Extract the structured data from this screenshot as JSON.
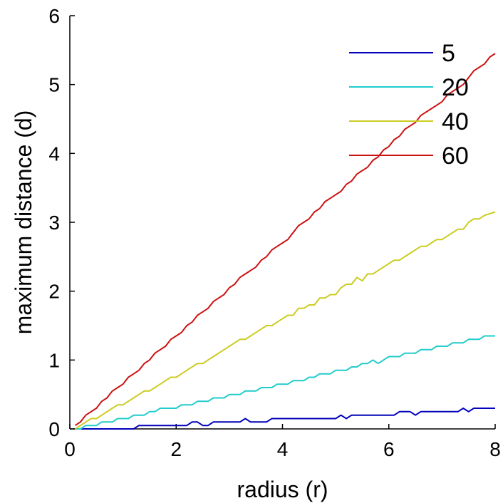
{
  "chart_data": {
    "type": "line",
    "title": "",
    "xlabel": "radius (r)",
    "ylabel": "maximum distance (d)",
    "xlim": [
      0,
      8
    ],
    "ylim": [
      0,
      6
    ],
    "xticks": [
      "0",
      "2",
      "4",
      "6",
      "8"
    ],
    "yticks": [
      "0",
      "1",
      "2",
      "3",
      "4",
      "5",
      "6"
    ],
    "grid": false,
    "legend_position": "top-right",
    "series": [
      {
        "name": "5",
        "color": "#0000bb",
        "points": [
          [
            0.1,
            0
          ],
          [
            1.2,
            0
          ],
          [
            1.3,
            0.05
          ],
          [
            2.2,
            0.05
          ],
          [
            2.3,
            0.1
          ],
          [
            2.4,
            0.1
          ],
          [
            2.5,
            0.05
          ],
          [
            2.6,
            0.05
          ],
          [
            2.7,
            0.1
          ],
          [
            3.2,
            0.1
          ],
          [
            3.3,
            0.15
          ],
          [
            3.4,
            0.1
          ],
          [
            3.7,
            0.1
          ],
          [
            3.8,
            0.15
          ],
          [
            5.0,
            0.15
          ],
          [
            5.1,
            0.2
          ],
          [
            5.2,
            0.15
          ],
          [
            5.3,
            0.2
          ],
          [
            6.1,
            0.2
          ],
          [
            6.2,
            0.25
          ],
          [
            6.4,
            0.25
          ],
          [
            6.5,
            0.2
          ],
          [
            6.6,
            0.25
          ],
          [
            7.3,
            0.25
          ],
          [
            7.4,
            0.3
          ],
          [
            7.5,
            0.25
          ],
          [
            7.6,
            0.3
          ],
          [
            8.0,
            0.3
          ]
        ]
      },
      {
        "name": "20",
        "color": "#22cccc",
        "points": [
          [
            0.1,
            0
          ],
          [
            0.2,
            0
          ],
          [
            0.3,
            0.05
          ],
          [
            0.5,
            0.05
          ],
          [
            0.6,
            0.1
          ],
          [
            0.8,
            0.1
          ],
          [
            0.9,
            0.15
          ],
          [
            1.1,
            0.15
          ],
          [
            1.2,
            0.2
          ],
          [
            1.4,
            0.2
          ],
          [
            1.5,
            0.25
          ],
          [
            1.6,
            0.25
          ],
          [
            1.7,
            0.3
          ],
          [
            1.9,
            0.3
          ],
          [
            2.0,
            0.3
          ],
          [
            2.1,
            0.35
          ],
          [
            2.3,
            0.35
          ],
          [
            2.4,
            0.4
          ],
          [
            2.6,
            0.4
          ],
          [
            2.7,
            0.45
          ],
          [
            2.9,
            0.45
          ],
          [
            3.0,
            0.5
          ],
          [
            3.2,
            0.5
          ],
          [
            3.3,
            0.55
          ],
          [
            3.5,
            0.55
          ],
          [
            3.6,
            0.6
          ],
          [
            3.8,
            0.6
          ],
          [
            3.9,
            0.65
          ],
          [
            4.1,
            0.65
          ],
          [
            4.2,
            0.7
          ],
          [
            4.4,
            0.7
          ],
          [
            4.5,
            0.75
          ],
          [
            4.6,
            0.75
          ],
          [
            4.7,
            0.8
          ],
          [
            4.9,
            0.8
          ],
          [
            5.0,
            0.85
          ],
          [
            5.2,
            0.85
          ],
          [
            5.3,
            0.9
          ],
          [
            5.4,
            0.9
          ],
          [
            5.5,
            0.95
          ],
          [
            5.6,
            0.95
          ],
          [
            5.7,
            1.0
          ],
          [
            5.8,
            0.95
          ],
          [
            5.9,
            1.0
          ],
          [
            6.0,
            1.05
          ],
          [
            6.2,
            1.05
          ],
          [
            6.3,
            1.1
          ],
          [
            6.5,
            1.1
          ],
          [
            6.6,
            1.15
          ],
          [
            6.8,
            1.15
          ],
          [
            6.9,
            1.2
          ],
          [
            7.1,
            1.2
          ],
          [
            7.2,
            1.25
          ],
          [
            7.4,
            1.25
          ],
          [
            7.5,
            1.3
          ],
          [
            7.7,
            1.3
          ],
          [
            7.8,
            1.35
          ],
          [
            8.0,
            1.35
          ]
        ]
      },
      {
        "name": "40",
        "color": "#cccc22",
        "points": [
          [
            0.1,
            0
          ],
          [
            0.2,
            0.05
          ],
          [
            0.3,
            0.1
          ],
          [
            0.4,
            0.15
          ],
          [
            0.5,
            0.15
          ],
          [
            0.6,
            0.2
          ],
          [
            0.7,
            0.25
          ],
          [
            0.8,
            0.3
          ],
          [
            0.9,
            0.35
          ],
          [
            1.0,
            0.35
          ],
          [
            1.1,
            0.4
          ],
          [
            1.2,
            0.45
          ],
          [
            1.3,
            0.5
          ],
          [
            1.4,
            0.55
          ],
          [
            1.5,
            0.55
          ],
          [
            1.6,
            0.6
          ],
          [
            1.7,
            0.65
          ],
          [
            1.8,
            0.7
          ],
          [
            1.9,
            0.75
          ],
          [
            2.0,
            0.75
          ],
          [
            2.1,
            0.8
          ],
          [
            2.2,
            0.85
          ],
          [
            2.3,
            0.9
          ],
          [
            2.4,
            0.95
          ],
          [
            2.5,
            0.95
          ],
          [
            2.6,
            1.0
          ],
          [
            2.7,
            1.05
          ],
          [
            2.8,
            1.1
          ],
          [
            2.9,
            1.15
          ],
          [
            3.0,
            1.2
          ],
          [
            3.1,
            1.25
          ],
          [
            3.2,
            1.3
          ],
          [
            3.3,
            1.3
          ],
          [
            3.4,
            1.35
          ],
          [
            3.5,
            1.4
          ],
          [
            3.6,
            1.45
          ],
          [
            3.7,
            1.5
          ],
          [
            3.8,
            1.5
          ],
          [
            3.9,
            1.55
          ],
          [
            4.0,
            1.6
          ],
          [
            4.1,
            1.65
          ],
          [
            4.2,
            1.65
          ],
          [
            4.3,
            1.75
          ],
          [
            4.4,
            1.75
          ],
          [
            4.5,
            1.8
          ],
          [
            4.6,
            1.8
          ],
          [
            4.7,
            1.9
          ],
          [
            4.8,
            1.9
          ],
          [
            4.9,
            1.95
          ],
          [
            5.0,
            1.95
          ],
          [
            5.1,
            2.05
          ],
          [
            5.2,
            2.1
          ],
          [
            5.3,
            2.1
          ],
          [
            5.4,
            2.2
          ],
          [
            5.5,
            2.15
          ],
          [
            5.6,
            2.25
          ],
          [
            5.7,
            2.25
          ],
          [
            5.8,
            2.3
          ],
          [
            5.9,
            2.35
          ],
          [
            6.0,
            2.4
          ],
          [
            6.1,
            2.45
          ],
          [
            6.2,
            2.45
          ],
          [
            6.3,
            2.5
          ],
          [
            6.4,
            2.55
          ],
          [
            6.5,
            2.6
          ],
          [
            6.6,
            2.65
          ],
          [
            6.7,
            2.65
          ],
          [
            6.8,
            2.7
          ],
          [
            6.9,
            2.75
          ],
          [
            7.0,
            2.75
          ],
          [
            7.1,
            2.8
          ],
          [
            7.2,
            2.85
          ],
          [
            7.3,
            2.9
          ],
          [
            7.4,
            2.9
          ],
          [
            7.5,
            3.0
          ],
          [
            7.6,
            3.05
          ],
          [
            7.7,
            3.05
          ],
          [
            7.8,
            3.1
          ],
          [
            8.0,
            3.15
          ]
        ]
      },
      {
        "name": "60",
        "color": "#cc1111",
        "points": [
          [
            0.1,
            0.05
          ],
          [
            0.2,
            0.1
          ],
          [
            0.3,
            0.2
          ],
          [
            0.4,
            0.25
          ],
          [
            0.5,
            0.3
          ],
          [
            0.6,
            0.4
          ],
          [
            0.7,
            0.45
          ],
          [
            0.8,
            0.55
          ],
          [
            0.9,
            0.6
          ],
          [
            1.0,
            0.65
          ],
          [
            1.1,
            0.75
          ],
          [
            1.2,
            0.8
          ],
          [
            1.3,
            0.85
          ],
          [
            1.4,
            0.95
          ],
          [
            1.5,
            1.0
          ],
          [
            1.6,
            1.1
          ],
          [
            1.7,
            1.15
          ],
          [
            1.8,
            1.2
          ],
          [
            1.9,
            1.3
          ],
          [
            2.0,
            1.35
          ],
          [
            2.1,
            1.4
          ],
          [
            2.2,
            1.5
          ],
          [
            2.3,
            1.55
          ],
          [
            2.4,
            1.65
          ],
          [
            2.5,
            1.7
          ],
          [
            2.6,
            1.75
          ],
          [
            2.7,
            1.85
          ],
          [
            2.8,
            1.9
          ],
          [
            2.9,
            1.95
          ],
          [
            3.0,
            2.05
          ],
          [
            3.1,
            2.1
          ],
          [
            3.2,
            2.2
          ],
          [
            3.3,
            2.25
          ],
          [
            3.4,
            2.3
          ],
          [
            3.5,
            2.35
          ],
          [
            3.6,
            2.45
          ],
          [
            3.7,
            2.5
          ],
          [
            3.8,
            2.6
          ],
          [
            3.9,
            2.65
          ],
          [
            4.0,
            2.7
          ],
          [
            4.1,
            2.75
          ],
          [
            4.2,
            2.85
          ],
          [
            4.3,
            2.95
          ],
          [
            4.4,
            3.0
          ],
          [
            4.5,
            3.05
          ],
          [
            4.6,
            3.15
          ],
          [
            4.7,
            3.2
          ],
          [
            4.8,
            3.3
          ],
          [
            4.9,
            3.35
          ],
          [
            5.0,
            3.4
          ],
          [
            5.1,
            3.45
          ],
          [
            5.2,
            3.55
          ],
          [
            5.3,
            3.6
          ],
          [
            5.4,
            3.7
          ],
          [
            5.5,
            3.75
          ],
          [
            5.6,
            3.8
          ],
          [
            5.7,
            3.9
          ],
          [
            5.8,
            3.95
          ],
          [
            5.9,
            4.05
          ],
          [
            6.0,
            4.1
          ],
          [
            6.1,
            4.2
          ],
          [
            6.2,
            4.25
          ],
          [
            6.3,
            4.35
          ],
          [
            6.4,
            4.4
          ],
          [
            6.5,
            4.45
          ],
          [
            6.6,
            4.55
          ],
          [
            6.7,
            4.6
          ],
          [
            6.8,
            4.65
          ],
          [
            6.9,
            4.7
          ],
          [
            7.0,
            4.75
          ],
          [
            7.1,
            4.85
          ],
          [
            7.2,
            4.9
          ],
          [
            7.3,
            4.95
          ],
          [
            7.4,
            5.0
          ],
          [
            7.5,
            5.1
          ],
          [
            7.6,
            5.2
          ],
          [
            7.7,
            5.25
          ],
          [
            7.8,
            5.3
          ],
          [
            7.9,
            5.4
          ],
          [
            8.0,
            5.45
          ]
        ]
      }
    ]
  }
}
